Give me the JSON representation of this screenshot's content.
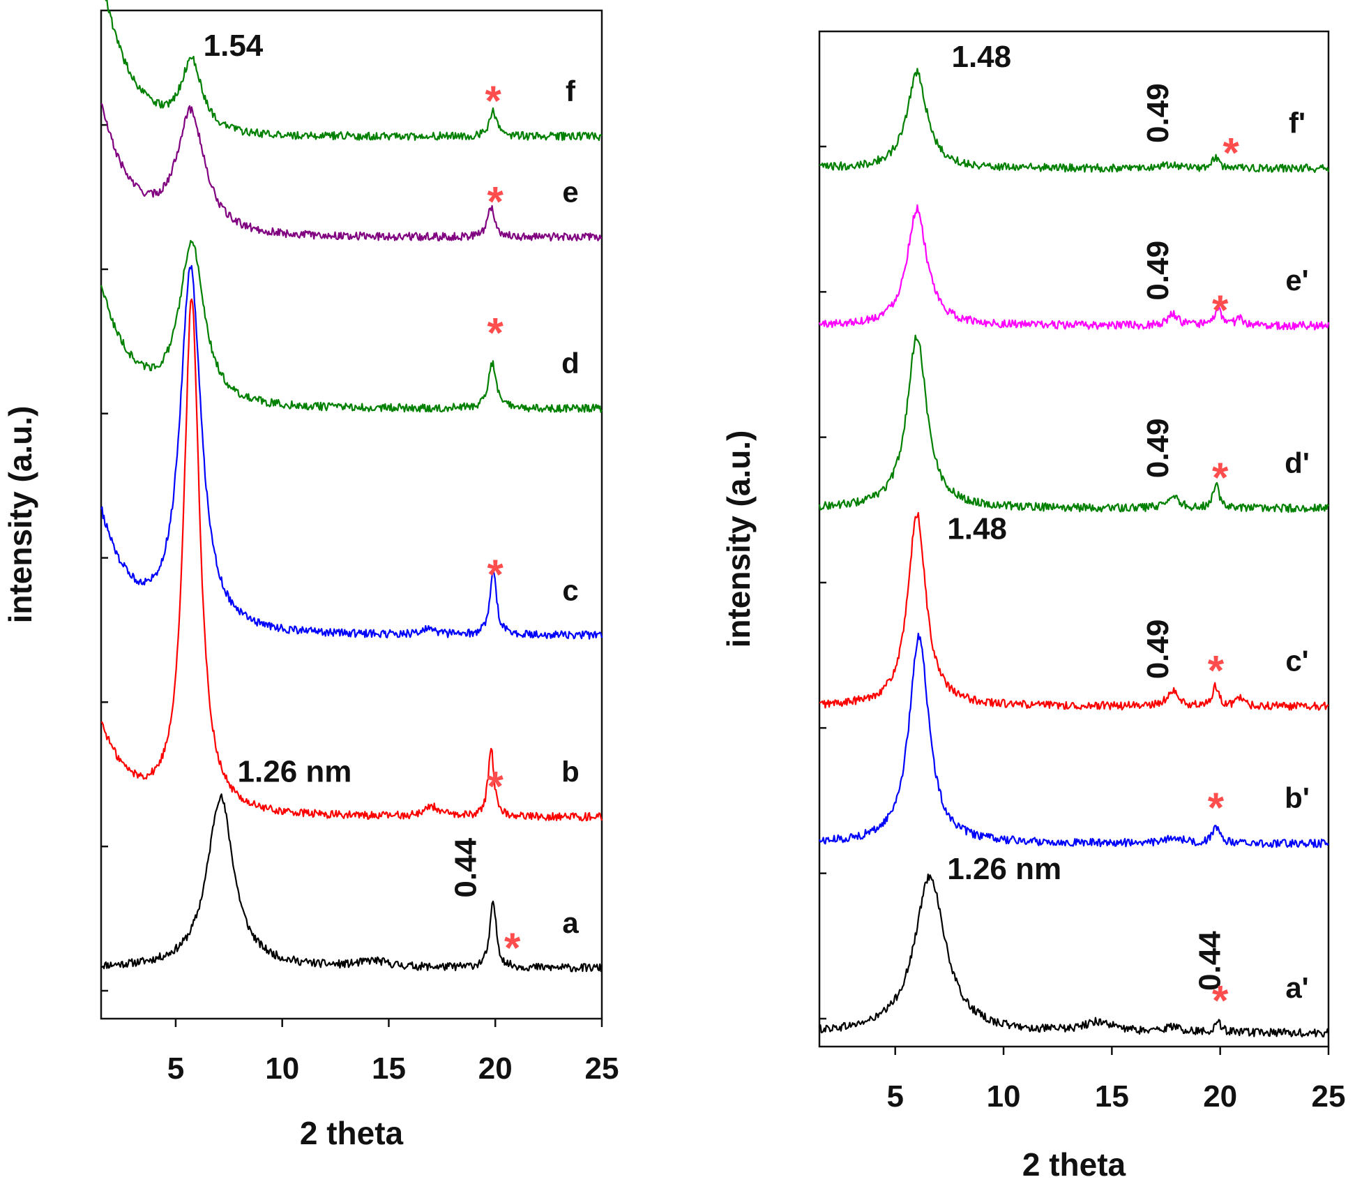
{
  "colors": {
    "black": "#000000",
    "red": "#ff0000",
    "blue": "#0000ff",
    "green": "#008000",
    "purple": "#800080",
    "magenta": "#ff00ff",
    "star": "#ff4d4d",
    "axis": "#111111"
  },
  "chart_data": [
    {
      "type": "line",
      "panel": "left",
      "xlabel": "2 theta",
      "ylabel": "intensity (a.u.)",
      "xlim": [
        1.5,
        25
      ],
      "xticks": [
        "5",
        "10",
        "15",
        "20",
        "25"
      ],
      "series": [
        {
          "name": "a",
          "label": "a",
          "color": "#000000",
          "baseline": 0.05,
          "lowAngleRise": 0.0,
          "peaks": [
            {
              "x": 7.1,
              "h": 0.17,
              "w": 0.75
            },
            {
              "x": 19.9,
              "h": 0.065,
              "w": 0.18
            },
            {
              "x": 14.3,
              "h": 0.006,
              "w": 0.8
            }
          ]
        },
        {
          "name": "b",
          "label": "b",
          "color": "#ff0000",
          "baseline": 0.2,
          "lowAngleRise": 0.09,
          "peaks": [
            {
              "x": 5.75,
              "h": 0.51,
              "w": 0.45
            },
            {
              "x": 19.8,
              "h": 0.07,
              "w": 0.16
            },
            {
              "x": 17.0,
              "h": 0.01,
              "w": 0.4
            }
          ]
        },
        {
          "name": "c",
          "label": "c",
          "color": "#0000ff",
          "baseline": 0.38,
          "lowAngleRise": 0.12,
          "peaks": [
            {
              "x": 5.7,
              "h": 0.36,
              "w": 0.6
            },
            {
              "x": 19.9,
              "h": 0.065,
              "w": 0.18
            },
            {
              "x": 16.8,
              "h": 0.005,
              "w": 0.4
            }
          ]
        },
        {
          "name": "d",
          "label": "d",
          "color": "#008000",
          "baseline": 0.605,
          "lowAngleRise": 0.12,
          "peaks": [
            {
              "x": 5.75,
              "h": 0.16,
              "w": 0.7
            },
            {
              "x": 19.85,
              "h": 0.045,
              "w": 0.22
            }
          ]
        },
        {
          "name": "e",
          "label": "e",
          "color": "#800080",
          "baseline": 0.775,
          "lowAngleRise": 0.13,
          "peaks": [
            {
              "x": 5.7,
              "h": 0.12,
              "w": 0.8
            },
            {
              "x": 19.8,
              "h": 0.03,
              "w": 0.2
            }
          ]
        },
        {
          "name": "f",
          "label": "f",
          "color": "#008000",
          "baseline": 0.875,
          "lowAngleRise": 0.16,
          "peaks": [
            {
              "x": 5.75,
              "h": 0.07,
              "w": 0.6
            },
            {
              "x": 19.9,
              "h": 0.025,
              "w": 0.2
            }
          ]
        }
      ],
      "annotations": [
        {
          "text": "1.54",
          "x": 6.3,
          "y": 0.955
        },
        {
          "text": "1.26 nm",
          "x": 7.9,
          "y": 0.235
        },
        {
          "text": "0.44",
          "x": 19.1,
          "y": 0.12,
          "rotate": true
        }
      ],
      "stars": [
        {
          "x": 19.9,
          "y": 0.91
        },
        {
          "x": 20.0,
          "y": 0.81
        },
        {
          "x": 20.0,
          "y": 0.68
        },
        {
          "x": 20.0,
          "y": 0.44
        },
        {
          "x": 20.0,
          "y": 0.23
        },
        {
          "x": 20.8,
          "y": 0.07
        }
      ]
    },
    {
      "type": "line",
      "panel": "right",
      "xlabel": "2 theta",
      "ylabel": "intensity (a.u.)",
      "xlim": [
        1.5,
        25
      ],
      "xticks": [
        "5",
        "10",
        "15",
        "20",
        "25"
      ],
      "series": [
        {
          "name": "a'",
          "label": "a'",
          "color": "#000000",
          "baseline": 0.013,
          "lowAngleRise": 0.0,
          "peaks": [
            {
              "x": 6.6,
              "h": 0.155,
              "w": 0.85
            },
            {
              "x": 14.4,
              "h": 0.01,
              "w": 0.8
            },
            {
              "x": 17.8,
              "h": 0.005,
              "w": 0.5
            },
            {
              "x": 19.9,
              "h": 0.01,
              "w": 0.2
            }
          ]
        },
        {
          "name": "b'",
          "label": "b'",
          "color": "#0000ff",
          "baseline": 0.2,
          "lowAngleRise": 0.0,
          "peaks": [
            {
              "x": 6.1,
              "h": 0.205,
              "w": 0.55
            },
            {
              "x": 19.8,
              "h": 0.015,
              "w": 0.2
            },
            {
              "x": 17.9,
              "h": 0.006,
              "w": 0.4
            }
          ]
        },
        {
          "name": "c'",
          "label": "c'",
          "color": "#ff0000",
          "baseline": 0.335,
          "lowAngleRise": 0.0,
          "peaks": [
            {
              "x": 6.0,
              "h": 0.19,
              "w": 0.5
            },
            {
              "x": 17.8,
              "h": 0.015,
              "w": 0.3
            },
            {
              "x": 19.8,
              "h": 0.02,
              "w": 0.16
            },
            {
              "x": 20.9,
              "h": 0.008,
              "w": 0.2
            }
          ]
        },
        {
          "name": "d'",
          "label": "d'",
          "color": "#008000",
          "baseline": 0.53,
          "lowAngleRise": 0.0,
          "peaks": [
            {
              "x": 6.0,
              "h": 0.17,
              "w": 0.55
            },
            {
              "x": 17.8,
              "h": 0.013,
              "w": 0.3
            },
            {
              "x": 19.8,
              "h": 0.025,
              "w": 0.16
            }
          ]
        },
        {
          "name": "e'",
          "label": "e'",
          "color": "#ff00ff",
          "baseline": 0.71,
          "lowAngleRise": 0.0,
          "peaks": [
            {
              "x": 6.0,
              "h": 0.115,
              "w": 0.55
            },
            {
              "x": 17.8,
              "h": 0.011,
              "w": 0.3
            },
            {
              "x": 19.9,
              "h": 0.016,
              "w": 0.2
            },
            {
              "x": 20.9,
              "h": 0.007,
              "w": 0.2
            }
          ]
        },
        {
          "name": "f'",
          "label": "f'",
          "color": "#008000",
          "baseline": 0.865,
          "lowAngleRise": 0.0,
          "peaks": [
            {
              "x": 6.0,
              "h": 0.095,
              "w": 0.55
            },
            {
              "x": 17.6,
              "h": 0.004,
              "w": 0.3
            },
            {
              "x": 19.8,
              "h": 0.01,
              "w": 0.2
            }
          ]
        }
      ],
      "annotations": [
        {
          "text": "1.48",
          "x": 7.6,
          "y": 0.965
        },
        {
          "text": "1.48",
          "x": 7.4,
          "y": 0.5
        },
        {
          "text": "1.26 nm",
          "x": 7.4,
          "y": 0.165
        },
        {
          "text": "0.49",
          "x": 17.6,
          "y": 0.89,
          "rotate": true
        },
        {
          "text": "0.49",
          "x": 17.6,
          "y": 0.735,
          "rotate": true
        },
        {
          "text": "0.49",
          "x": 17.6,
          "y": 0.56,
          "rotate": true
        },
        {
          "text": "0.49",
          "x": 17.6,
          "y": 0.362,
          "rotate": true
        },
        {
          "text": "0.44",
          "x": 20.0,
          "y": 0.055,
          "rotate": true
        }
      ],
      "stars": [
        {
          "x": 20.5,
          "y": 0.88
        },
        {
          "x": 20.0,
          "y": 0.725
        },
        {
          "x": 20.0,
          "y": 0.56
        },
        {
          "x": 19.8,
          "y": 0.37
        },
        {
          "x": 19.8,
          "y": 0.235
        },
        {
          "x": 20.0,
          "y": 0.045
        }
      ]
    }
  ]
}
